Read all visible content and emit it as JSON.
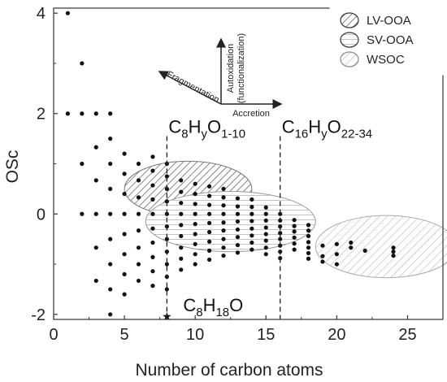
{
  "chart_data": {
    "type": "scatter",
    "title": "",
    "xlabel": "Number of carbon atoms",
    "ylabel": "OSc",
    "xlim": [
      0,
      27.5
    ],
    "ylim": [
      -2.1,
      4.1
    ],
    "x_ticks": [
      "0",
      "5",
      "10",
      "15",
      "20",
      "25"
    ],
    "y_ticks": [
      "4",
      "2",
      "0",
      "-2"
    ],
    "grid": false,
    "legend_position": "top-right",
    "legend": [
      {
        "label": "LV-OOA",
        "pattern": "diagonal-dense"
      },
      {
        "label": "SV-OOA",
        "pattern": "horizontal"
      },
      {
        "label": "WSOC",
        "pattern": "diagonal-sparse"
      }
    ],
    "regions": [
      {
        "name": "LV-OOA",
        "center": [
          9.5,
          0.5
        ],
        "radius_x": 4.5,
        "radius_y": 0.55
      },
      {
        "name": "SV-OOA",
        "center": [
          12.5,
          -0.15
        ],
        "radius_x": 6.0,
        "radius_y": 0.6
      },
      {
        "name": "WSOC",
        "center": [
          23.5,
          -0.65
        ],
        "radius_x": 5.0,
        "radius_y": 0.62
      }
    ],
    "reference_lines": [
      {
        "x": 8,
        "label": {
          "base": "C",
          "sub1": "8",
          "mid": "H",
          "sub2": "y",
          "mid2": "O",
          "sub3": "1-10"
        }
      },
      {
        "x": 16,
        "label": {
          "base": "C",
          "sub1": "16",
          "mid": "H",
          "sub2": "y",
          "mid2": "O",
          "sub3": "22-34"
        }
      }
    ],
    "special_point": {
      "x": 8,
      "y": -2.0,
      "marker": "star",
      "label": {
        "base": "C",
        "sub1": "8",
        "mid": "H",
        "sub2": "18",
        "mid2": "O"
      }
    },
    "arrows": {
      "vertical": "Autoxidation\n(functionalization)",
      "vertical_lines": [
        "Autoxidation",
        "(functionalization)"
      ],
      "left": "Fragmentation",
      "right": "Accretion"
    },
    "points": [
      [
        1,
        4
      ],
      [
        2,
        3
      ],
      [
        1,
        2
      ],
      [
        2,
        2
      ],
      [
        3,
        2
      ],
      [
        4,
        2
      ],
      [
        2,
        1
      ],
      [
        2,
        0
      ],
      [
        3,
        1.33
      ],
      [
        3,
        0.67
      ],
      [
        3,
        0
      ],
      [
        3,
        -0.67
      ],
      [
        3,
        -1.33
      ],
      [
        4,
        1.5
      ],
      [
        4,
        1
      ],
      [
        4,
        0.5
      ],
      [
        4,
        0
      ],
      [
        4,
        -0.5
      ],
      [
        4,
        -1
      ],
      [
        4,
        -1.5
      ],
      [
        4,
        -2
      ],
      [
        5,
        1.2
      ],
      [
        5,
        0.8
      ],
      [
        5,
        0.4
      ],
      [
        5,
        0
      ],
      [
        5,
        -0.4
      ],
      [
        5,
        -0.8
      ],
      [
        5,
        -1.2
      ],
      [
        5,
        -1.6
      ],
      [
        6,
        1.0
      ],
      [
        6,
        0.67
      ],
      [
        6,
        0.33
      ],
      [
        6,
        0
      ],
      [
        6,
        -0.33
      ],
      [
        6,
        -0.67
      ],
      [
        6,
        -1.0
      ],
      [
        6,
        -1.33
      ],
      [
        7,
        1.14
      ],
      [
        7,
        0.86
      ],
      [
        7,
        0.57
      ],
      [
        7,
        0.29
      ],
      [
        7,
        0
      ],
      [
        7,
        -0.29
      ],
      [
        7,
        -0.57
      ],
      [
        7,
        -0.86
      ],
      [
        7,
        -1.14
      ],
      [
        7,
        -1.43
      ],
      [
        8,
        1.0
      ],
      [
        8,
        0.75
      ],
      [
        8,
        0.5
      ],
      [
        8,
        0.25
      ],
      [
        8,
        0
      ],
      [
        8,
        -0.25
      ],
      [
        8,
        -0.5
      ],
      [
        8,
        -0.75
      ],
      [
        8,
        -1.0
      ],
      [
        8,
        -1.25
      ],
      [
        8,
        -1.5
      ],
      [
        9,
        0.67
      ],
      [
        9,
        0.44
      ],
      [
        9,
        0.22
      ],
      [
        9,
        0
      ],
      [
        9,
        -0.22
      ],
      [
        9,
        -0.44
      ],
      [
        9,
        -0.67
      ],
      [
        9,
        -0.89
      ],
      [
        9,
        -1.11
      ],
      [
        10,
        0.6
      ],
      [
        10,
        0.4
      ],
      [
        10,
        0.2
      ],
      [
        10,
        0
      ],
      [
        10,
        -0.2
      ],
      [
        10,
        -0.4
      ],
      [
        10,
        -0.6
      ],
      [
        10,
        -0.8
      ],
      [
        10,
        -1.0
      ],
      [
        11,
        0.55
      ],
      [
        11,
        0.36
      ],
      [
        11,
        0.18
      ],
      [
        11,
        0
      ],
      [
        11,
        -0.18
      ],
      [
        11,
        -0.36
      ],
      [
        11,
        -0.55
      ],
      [
        11,
        -0.73
      ],
      [
        11,
        -0.91
      ],
      [
        12,
        0.5
      ],
      [
        12,
        0.33
      ],
      [
        12,
        0.17
      ],
      [
        12,
        0
      ],
      [
        12,
        -0.17
      ],
      [
        12,
        -0.33
      ],
      [
        12,
        -0.5
      ],
      [
        12,
        -0.67
      ],
      [
        12,
        -0.83
      ],
      [
        13,
        0.31
      ],
      [
        13,
        0.15
      ],
      [
        13,
        0
      ],
      [
        13,
        -0.15
      ],
      [
        13,
        -0.31
      ],
      [
        13,
        -0.46
      ],
      [
        13,
        -0.62
      ],
      [
        13,
        -0.77
      ],
      [
        14,
        0.29
      ],
      [
        14,
        0.14
      ],
      [
        14,
        0
      ],
      [
        14,
        -0.14
      ],
      [
        14,
        -0.29
      ],
      [
        14,
        -0.43
      ],
      [
        14,
        -0.57
      ],
      [
        14,
        -0.71
      ],
      [
        15,
        0.13
      ],
      [
        15,
        0
      ],
      [
        15,
        -0.13
      ],
      [
        15,
        -0.27
      ],
      [
        15,
        -0.4
      ],
      [
        15,
        -0.53
      ],
      [
        15,
        -0.67
      ],
      [
        15,
        -0.8
      ],
      [
        16,
        0
      ],
      [
        16,
        -0.13
      ],
      [
        16,
        -0.25
      ],
      [
        16,
        -0.38
      ],
      [
        16,
        -0.5
      ],
      [
        16,
        -0.63
      ],
      [
        16,
        -0.75
      ],
      [
        16,
        -0.88
      ],
      [
        17,
        -0.12
      ],
      [
        17,
        -0.24
      ],
      [
        17,
        -0.35
      ],
      [
        17,
        -0.47
      ],
      [
        17,
        -0.59
      ],
      [
        17,
        -0.71
      ],
      [
        18,
        -0.22
      ],
      [
        18,
        -0.33
      ],
      [
        18,
        -0.44
      ],
      [
        18,
        -0.56
      ],
      [
        18,
        -0.67
      ],
      [
        18,
        -0.78
      ],
      [
        18,
        -0.89
      ],
      [
        19,
        -0.63
      ],
      [
        19,
        -0.84
      ],
      [
        19,
        -0.95
      ],
      [
        20,
        -0.6
      ],
      [
        20,
        -0.8
      ],
      [
        20,
        -1.0
      ],
      [
        21,
        -0.57
      ],
      [
        21,
        -0.67
      ],
      [
        22,
        -0.73
      ],
      [
        24,
        -0.67
      ],
      [
        24,
        -0.75
      ],
      [
        24,
        -0.83
      ]
    ]
  }
}
